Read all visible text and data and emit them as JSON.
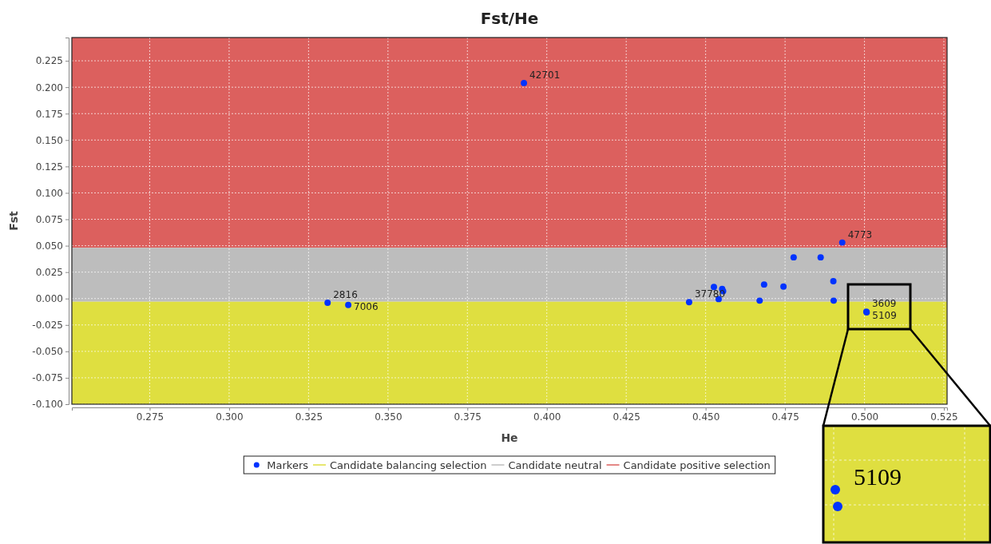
{
  "chart_data": {
    "type": "scatter",
    "title": "Fst/He",
    "xlabel": "He",
    "ylabel": "Fst",
    "xlim": [
      0.2505,
      0.526
    ],
    "ylim": [
      -0.1,
      0.247
    ],
    "xticks": [
      {
        "value": 0.275,
        "label": "0.275"
      },
      {
        "value": 0.3,
        "label": "0.300"
      },
      {
        "value": 0.325,
        "label": "0.325"
      },
      {
        "value": 0.35,
        "label": "0.350"
      },
      {
        "value": 0.375,
        "label": "0.375"
      },
      {
        "value": 0.4,
        "label": "0.400"
      },
      {
        "value": 0.425,
        "label": "0.425"
      },
      {
        "value": 0.45,
        "label": "0.450"
      },
      {
        "value": 0.475,
        "label": "0.475"
      },
      {
        "value": 0.5,
        "label": "0.500"
      },
      {
        "value": 0.525,
        "label": "0.525"
      }
    ],
    "yticks": [
      {
        "value": -0.1,
        "label": "-0.100"
      },
      {
        "value": -0.075,
        "label": "-0.075"
      },
      {
        "value": -0.05,
        "label": "-0.050"
      },
      {
        "value": -0.025,
        "label": "-0.025"
      },
      {
        "value": 0,
        "label": "0.000"
      },
      {
        "value": 0.025,
        "label": "0.025"
      },
      {
        "value": 0.05,
        "label": "0.050"
      },
      {
        "value": 0.075,
        "label": "0.075"
      },
      {
        "value": 0.1,
        "label": "0.100"
      },
      {
        "value": 0.125,
        "label": "0.125"
      },
      {
        "value": 0.15,
        "label": "0.150"
      },
      {
        "value": 0.175,
        "label": "0.175"
      },
      {
        "value": 0.2,
        "label": "0.200"
      },
      {
        "value": 0.225,
        "label": "0.225"
      }
    ],
    "grid": true,
    "legend": "bottom",
    "bands": [
      {
        "axis": "y",
        "from": 0.048,
        "to": 0.247,
        "label": "Candidate positive selection",
        "color": "#dc605e"
      },
      {
        "axis": "y",
        "from": -0.003,
        "to": 0.048,
        "label": "Candidate neutral",
        "color": "#bdbdbd"
      },
      {
        "axis": "y",
        "from": -0.1,
        "to": -0.003,
        "label": "Candidate balancing selection",
        "color": "#dfdf40"
      }
    ],
    "series": [
      {
        "name": "Markers",
        "marker": "circle",
        "color": "#0033ff",
        "x": [
          0.3928,
          0.493,
          0.331,
          0.3375,
          0.4448,
          0.4526,
          0.4552,
          0.4555,
          0.4541,
          0.4684,
          0.467,
          0.4745,
          0.4777,
          0.4862,
          0.4902,
          0.4903,
          0.5006,
          0.5007
        ],
        "values": [
          0.204,
          0.053,
          -0.004,
          -0.006,
          -0.0035,
          0.011,
          0.009,
          0.007,
          -0.0005,
          0.0133,
          -0.002,
          0.0113,
          0.039,
          0.039,
          0.0165,
          -0.002,
          -0.0125,
          -0.013
        ]
      }
    ],
    "annotations": [
      {
        "text": "42701",
        "x": 0.3928,
        "y": 0.204
      },
      {
        "text": "4773",
        "x": 0.493,
        "y": 0.053
      },
      {
        "text": "2816",
        "x": 0.331,
        "y": -0.004
      },
      {
        "text": "7006",
        "x": 0.3375,
        "y": -0.006
      },
      {
        "text": "37780",
        "x": 0.4448,
        "y": -0.0035
      },
      {
        "text": "3609",
        "x": 0.5006,
        "y": -0.0125
      },
      {
        "text": "5109",
        "x": 0.5007,
        "y": -0.013
      }
    ]
  }
}
